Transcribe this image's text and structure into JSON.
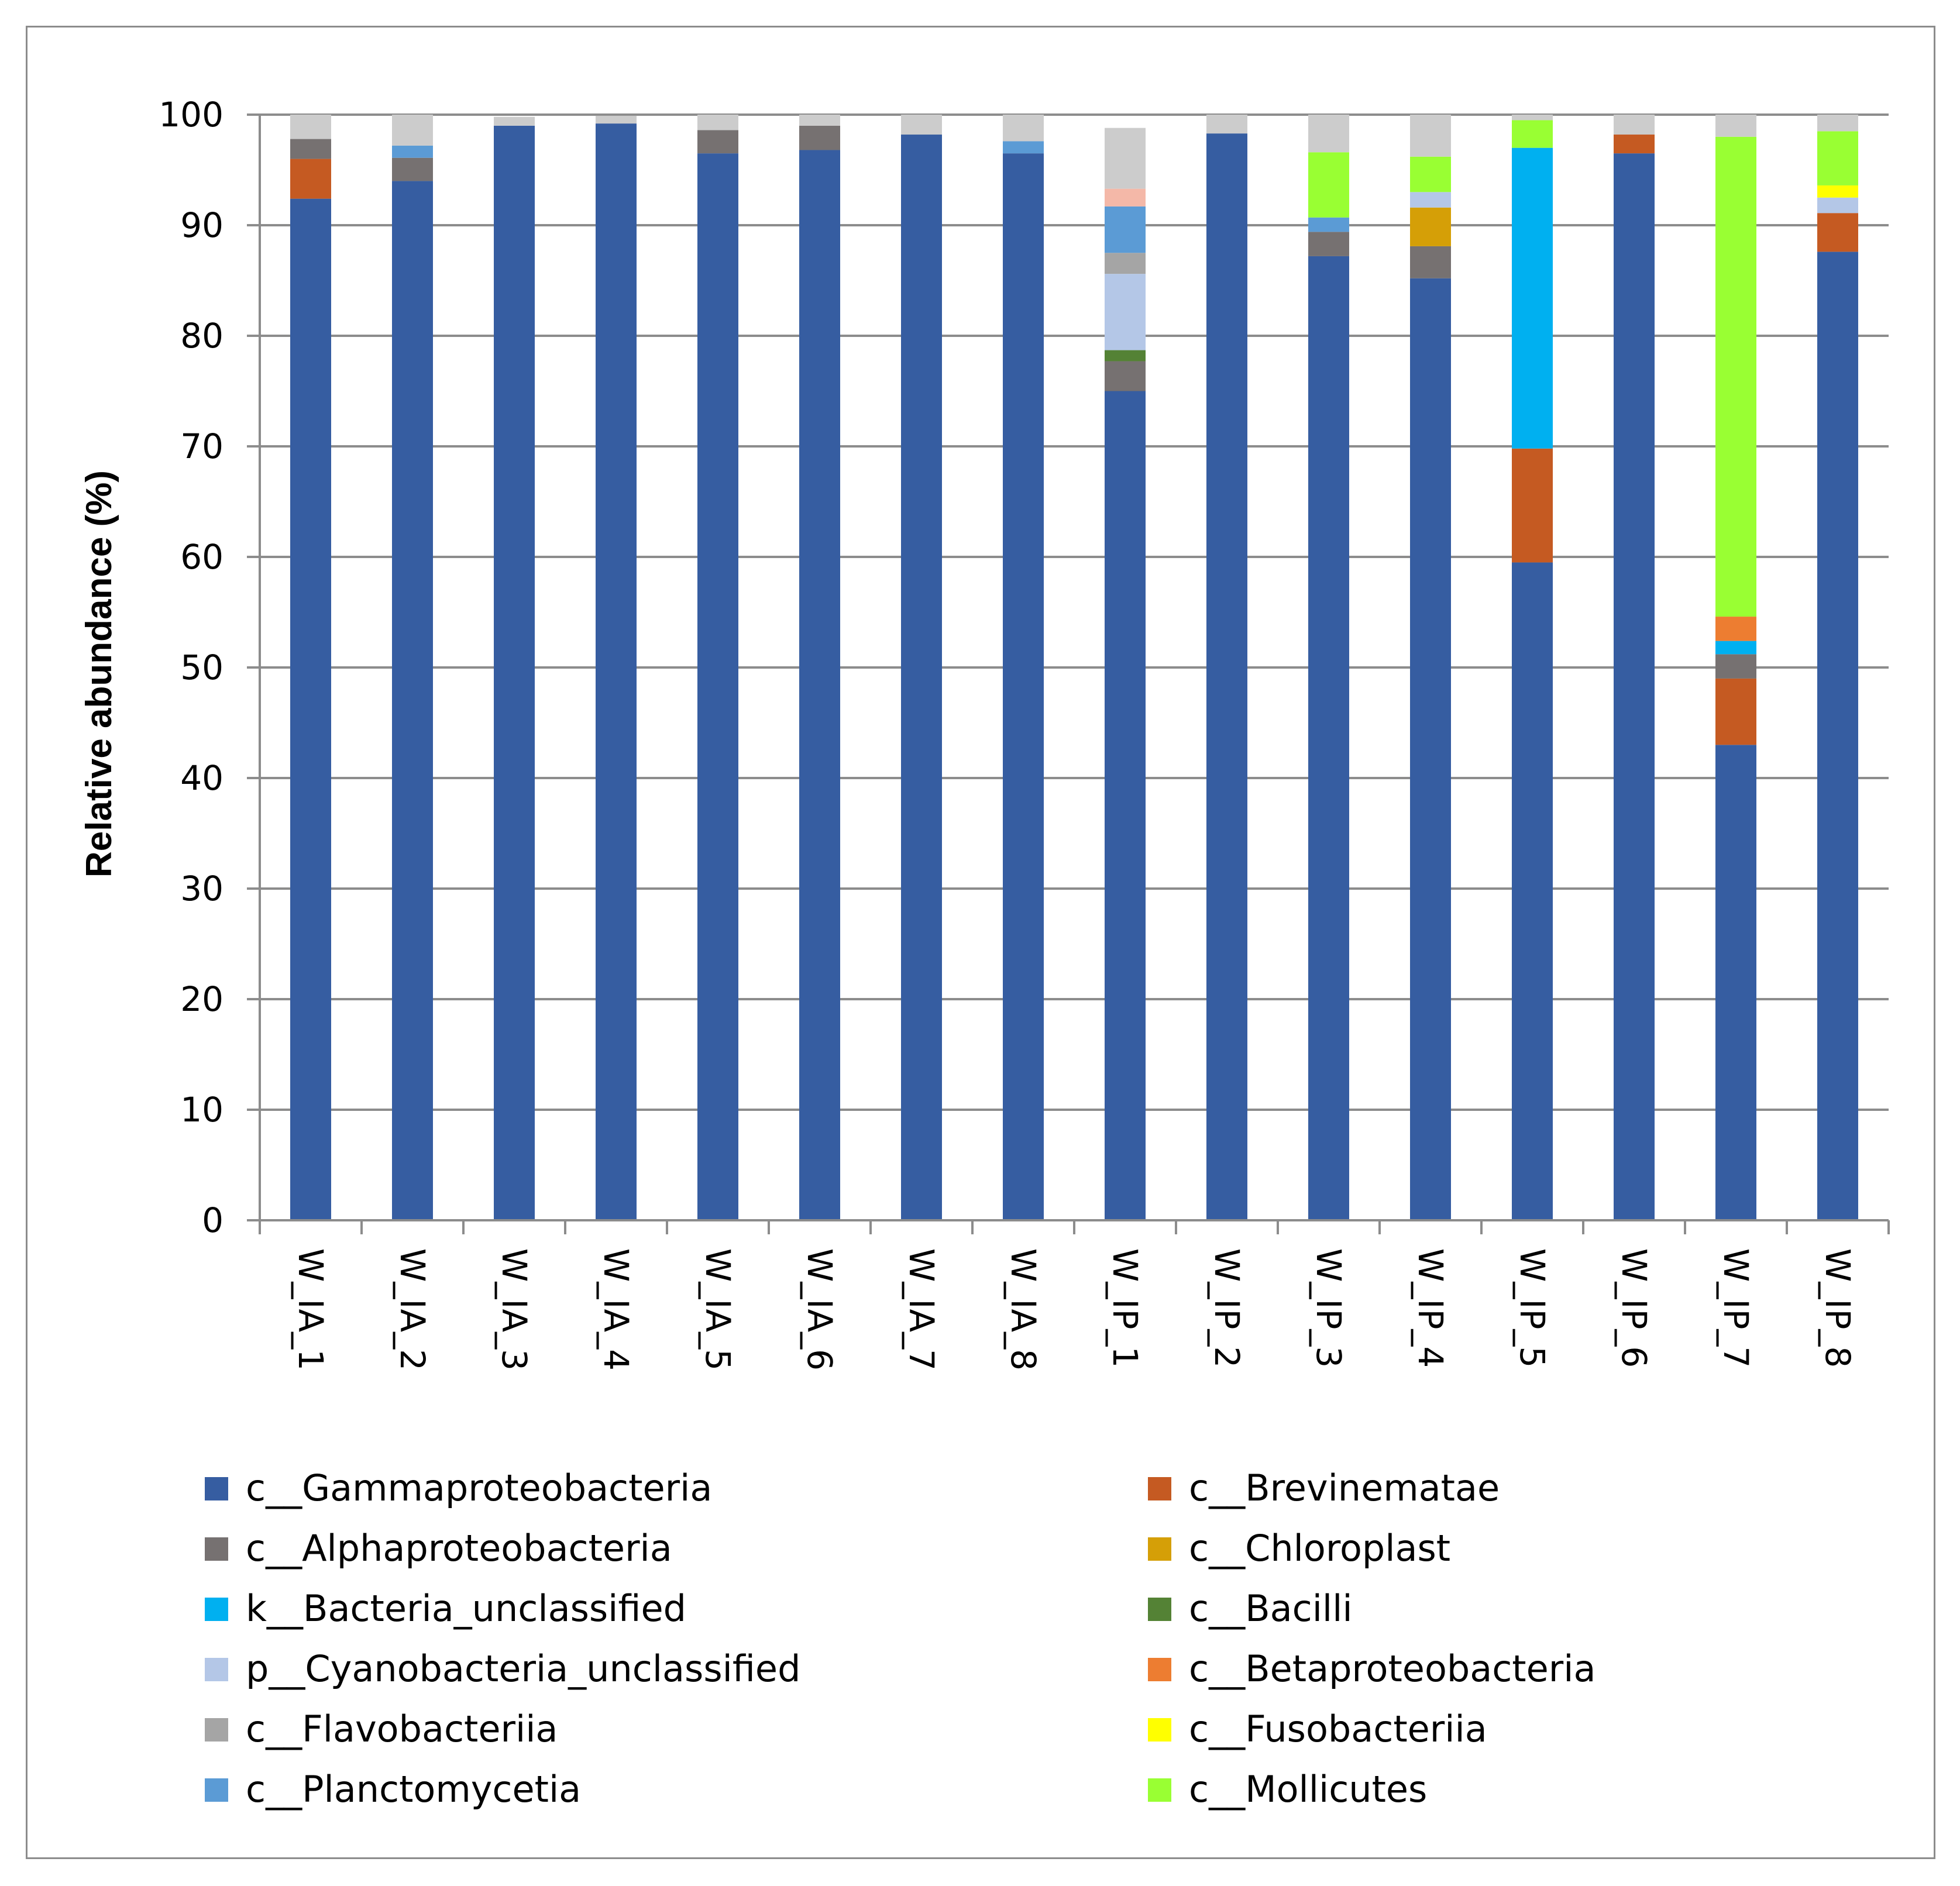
{
  "chart_data": {
    "type": "bar",
    "stacked": true,
    "title": "",
    "xlabel": "",
    "ylabel": "Relative abundance (%)",
    "ylim": [
      0,
      100
    ],
    "yticks": [
      0,
      10,
      20,
      30,
      40,
      50,
      60,
      70,
      80,
      90,
      100
    ],
    "grid": true,
    "legend_position": "bottom",
    "categories": [
      "W_IA_1",
      "W_IA_2",
      "W_IA_3",
      "W_IA_4",
      "W_IA_5",
      "W_IA_6",
      "W_IA_7",
      "W_IA_8",
      "W_IP_1",
      "W_IP_2",
      "W_IP_3",
      "W_IP_4",
      "W_IP_5",
      "W_IP_6",
      "W_IP_7",
      "W_IP_8"
    ],
    "series": [
      {
        "name": "c__Gammaproteobacteria",
        "color": "#365da1",
        "values": [
          92.4,
          94.0,
          99.0,
          99.2,
          96.5,
          96.8,
          98.2,
          96.5,
          75.0,
          98.3,
          87.2,
          85.2,
          59.5,
          96.5,
          43.0,
          87.6
        ]
      },
      {
        "name": "c__Brevinematae",
        "color": "#c55a22",
        "values": [
          3.6,
          0,
          0,
          0,
          0,
          0,
          0,
          0,
          0,
          0,
          0,
          0,
          10.3,
          1.7,
          6.0,
          3.5
        ]
      },
      {
        "name": "c__Alphaproteobacteria",
        "color": "#767171",
        "values": [
          1.8,
          2.1,
          0,
          0,
          2.1,
          2.2,
          0,
          0,
          2.7,
          0,
          2.2,
          2.9,
          0,
          0,
          2.2,
          0
        ]
      },
      {
        "name": "c__Chloroplast",
        "color": "#d59f07",
        "values": [
          0,
          0,
          0,
          0,
          0,
          0,
          0,
          0,
          0,
          0,
          0,
          3.5,
          0,
          0,
          0,
          0
        ]
      },
      {
        "name": "k__Bacteria_unclassified",
        "color": "#00b0f0",
        "values": [
          0,
          0,
          0,
          0,
          0,
          0,
          0,
          0,
          0,
          0,
          0,
          0,
          27.2,
          0,
          1.2,
          0
        ]
      },
      {
        "name": "c__Bacilli",
        "color": "#548235",
        "values": [
          0,
          0,
          0,
          0,
          0,
          0,
          0,
          0,
          1.0,
          0,
          0,
          0,
          0,
          0,
          0,
          0
        ]
      },
      {
        "name": "p__Cyanobacteria_unclassified",
        "color": "#b4c7e7",
        "values": [
          0,
          0,
          0,
          0,
          0,
          0,
          0,
          0,
          6.9,
          0,
          0,
          1.4,
          0,
          0,
          0,
          1.4
        ]
      },
      {
        "name": "c__Betaproteobacteria",
        "color": "#ed7d31",
        "values": [
          0,
          0,
          0,
          0,
          0,
          0,
          0,
          0,
          0,
          0,
          0,
          0,
          0,
          0,
          2.2,
          0
        ]
      },
      {
        "name": "c__Flavobacteriia",
        "color": "#a5a5a5",
        "values": [
          0,
          0,
          0,
          0,
          0,
          0,
          0,
          0,
          1.9,
          0,
          0,
          0,
          0,
          0,
          0,
          0
        ]
      },
      {
        "name": "c__Fusobacteriia",
        "color": "#ffff00",
        "values": [
          0,
          0,
          0,
          0,
          0,
          0,
          0,
          0,
          0,
          0,
          0,
          0,
          0,
          0,
          0,
          1.1
        ]
      },
      {
        "name": "c__Planctomycetia",
        "color": "#5b9bd5",
        "values": [
          0,
          1.1,
          0,
          0,
          0,
          0,
          0,
          1.1,
          4.2,
          0,
          1.3,
          0,
          0,
          0,
          0,
          0
        ]
      },
      {
        "name": "c__Mollicutes",
        "color": "#99ff33",
        "values": [
          0,
          0,
          0,
          0,
          0,
          0,
          0,
          0,
          0,
          0,
          5.9,
          3.2,
          2.5,
          0,
          43.4,
          4.9
        ]
      }
    ],
    "unlabeled_segments": [
      {
        "color": "#f4b8a8",
        "values": [
          0,
          0,
          0,
          0,
          0,
          0,
          0,
          0,
          1.6,
          0,
          0,
          0,
          0,
          0,
          0,
          0
        ]
      },
      {
        "color": "#cccccc",
        "values": [
          2.2,
          2.8,
          0.8,
          0.7,
          1.4,
          1.0,
          1.8,
          2.4,
          5.5,
          1.7,
          3.4,
          3.8,
          0.5,
          1.8,
          2.0,
          1.5
        ]
      }
    ]
  }
}
